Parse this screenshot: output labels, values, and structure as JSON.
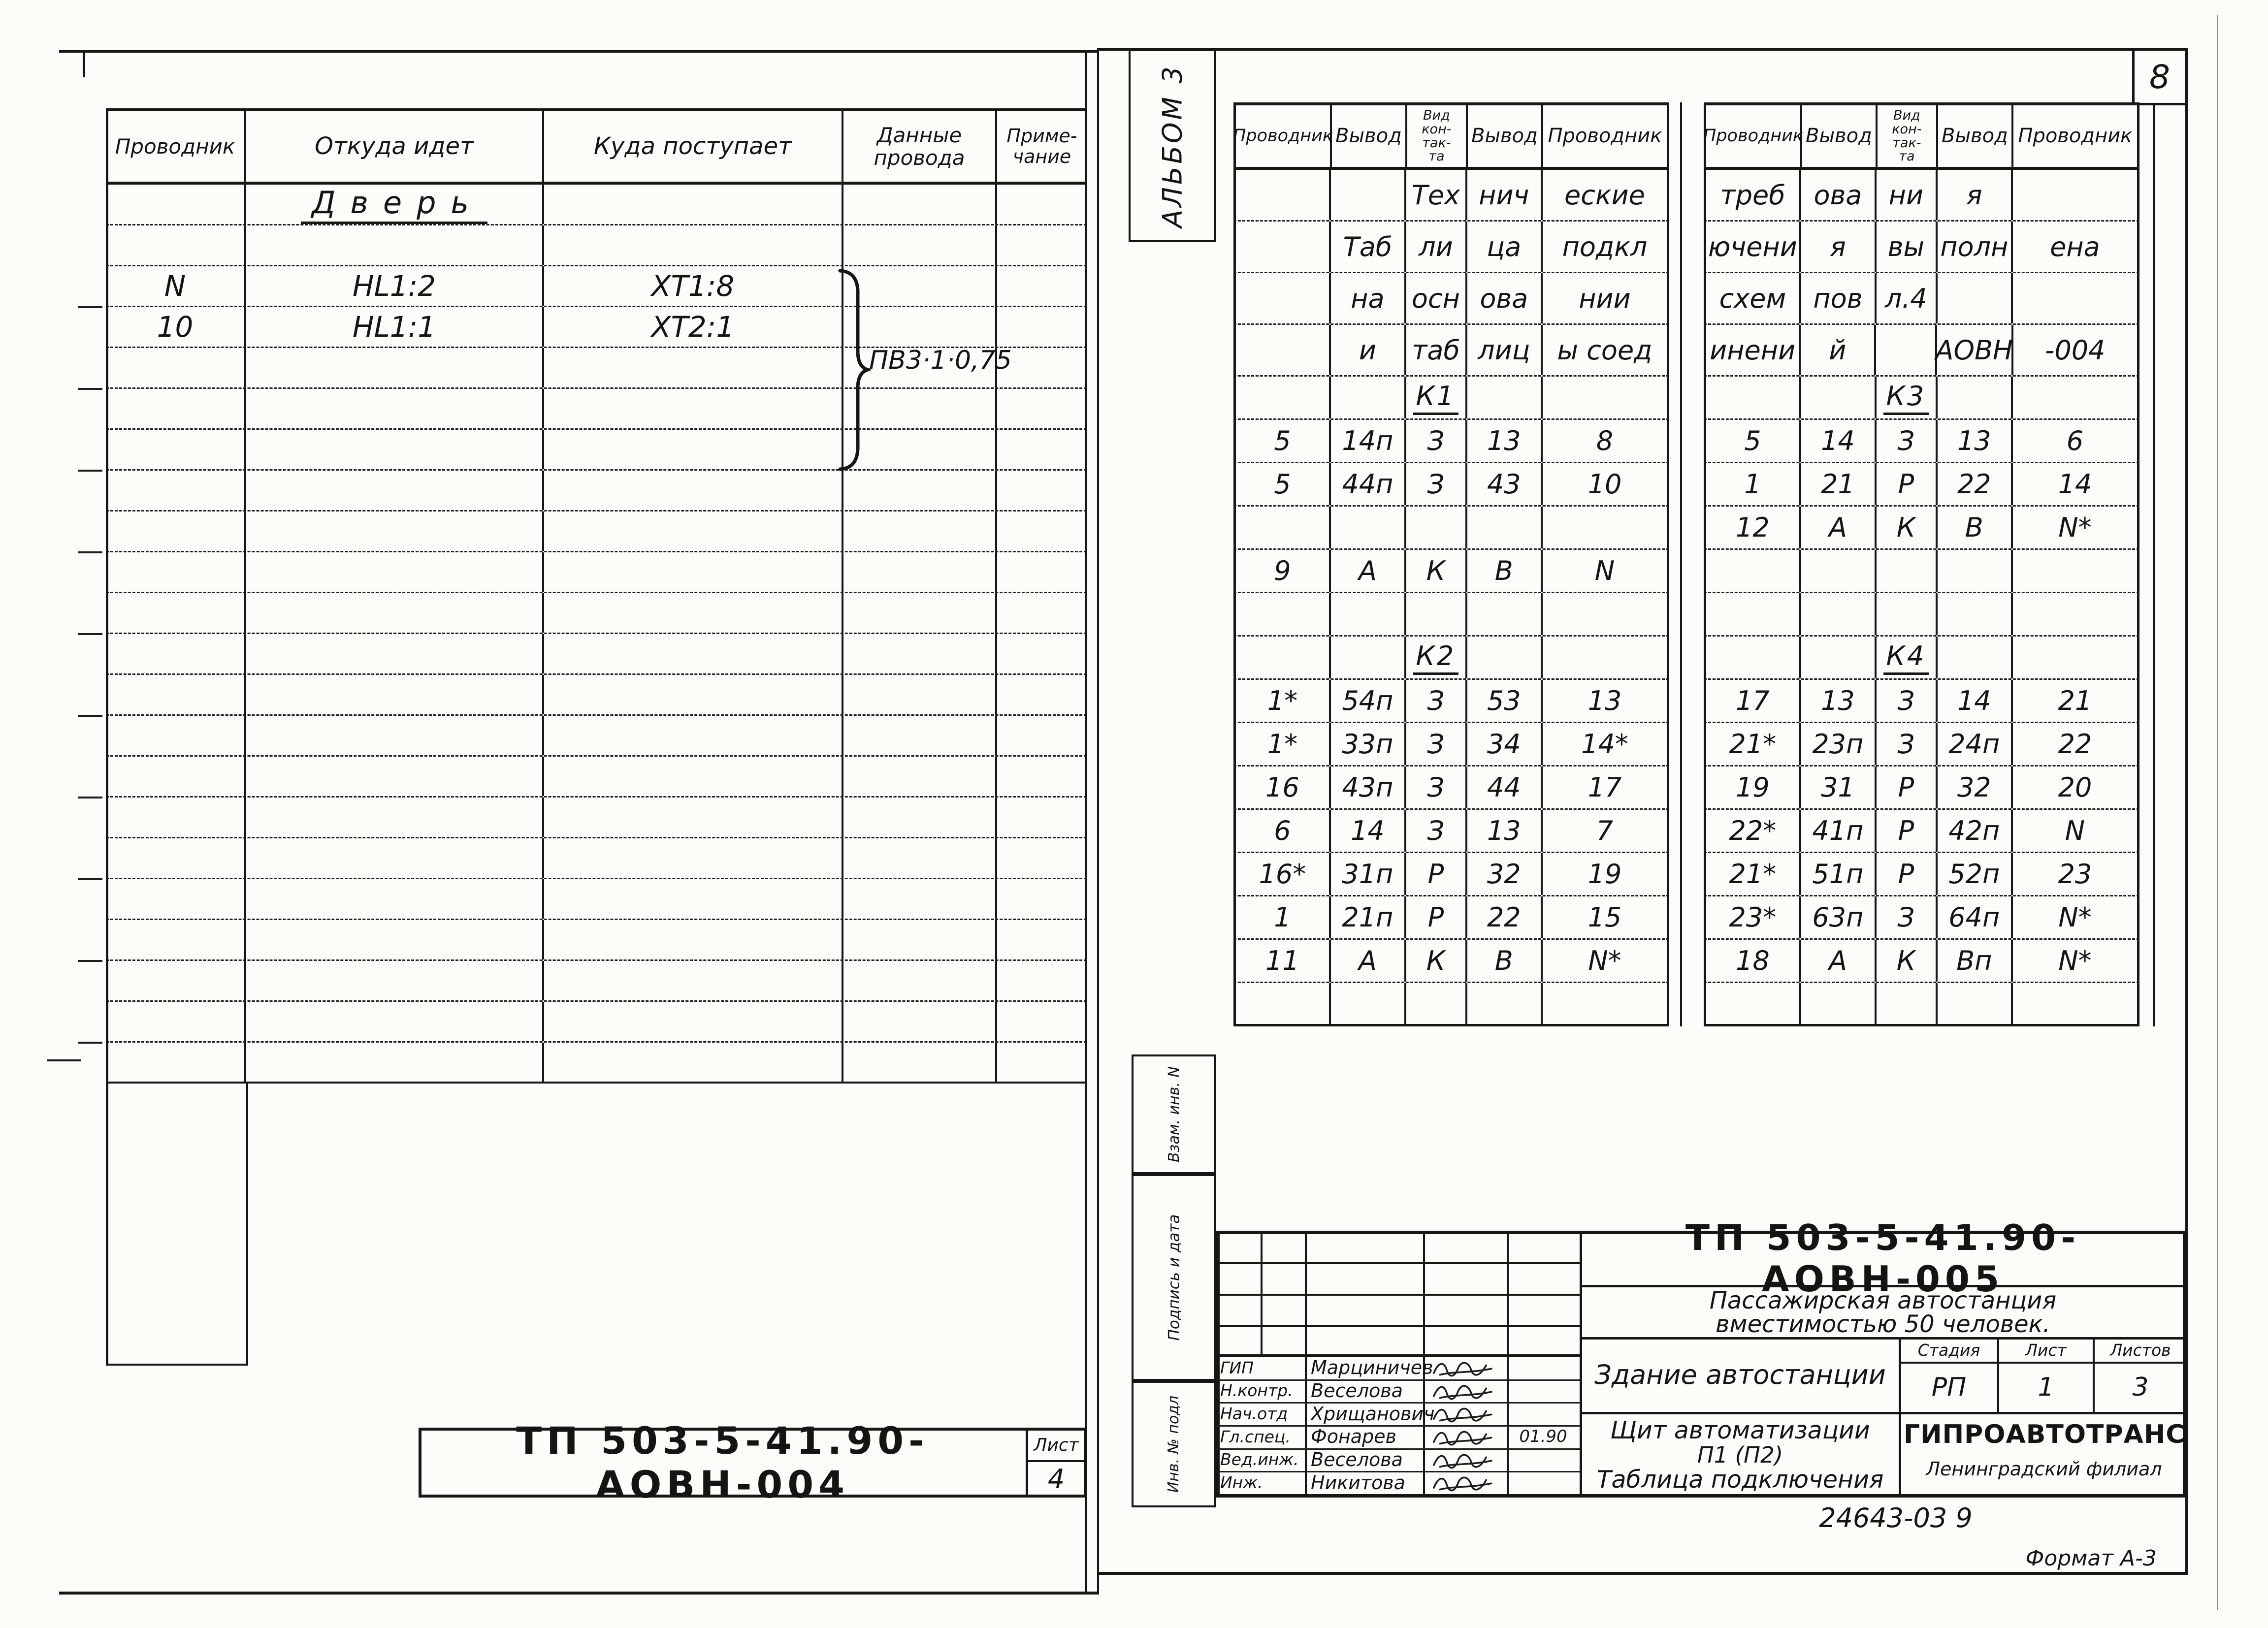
{
  "sheet": {
    "page_number": "8",
    "album_label": "АЛЬБОМ 3",
    "stamp_code": "24643-03  9",
    "format_label": "Формат А-3"
  },
  "margin": {
    "top_label": "Взам. инв. N",
    "middle_label": "Подпись и дата",
    "bottom_label": "Инв. № подл"
  },
  "left_page": {
    "table": {
      "headers": [
        "Проводник",
        "Откуда  идет",
        "Куда  поступает",
        "Данные\nпровода",
        "Приме-\nчание"
      ],
      "rows": [
        {
          "section": "Дверь"
        },
        [
          "",
          "",
          "",
          "",
          ""
        ],
        [
          "N",
          "HL1:2",
          "XT1:8",
          "",
          ""
        ],
        [
          "10",
          "HL1:1",
          "XT2:1",
          "",
          ""
        ],
        [
          "",
          "",
          "",
          "",
          ""
        ],
        [
          "",
          "",
          "",
          "",
          ""
        ],
        [
          "",
          "",
          "",
          "",
          ""
        ],
        [
          "",
          "",
          "",
          "",
          ""
        ],
        [
          "",
          "",
          "",
          "",
          ""
        ],
        [
          "",
          "",
          "",
          "",
          ""
        ],
        [
          "",
          "",
          "",
          "",
          ""
        ],
        [
          "",
          "",
          "",
          "",
          ""
        ],
        [
          "",
          "",
          "",
          "",
          ""
        ],
        [
          "",
          "",
          "",
          "",
          ""
        ],
        [
          "",
          "",
          "",
          "",
          ""
        ],
        [
          "",
          "",
          "",
          "",
          ""
        ],
        [
          "",
          "",
          "",
          "",
          ""
        ],
        [
          "",
          "",
          "",
          "",
          ""
        ],
        [
          "",
          "",
          "",
          "",
          ""
        ],
        [
          "",
          "",
          "",
          "",
          ""
        ],
        [
          "",
          "",
          "",
          "",
          ""
        ],
        [
          "",
          "",
          "",
          "",
          ""
        ]
      ],
      "wire_label": "ПВ3·1·0,75"
    },
    "title_block": {
      "doc_number": "ТП 503-5-41.90-АОВН-004",
      "sheet_label": "Лист",
      "sheet_number": "4"
    }
  },
  "right_page": {
    "table_headers": [
      "Проводник",
      "Вывод",
      "Вид\nкон-\nтак-\nта",
      "Вывод",
      "Проводник"
    ],
    "table_a": {
      "rows": [
        [
          "",
          "",
          "Тех",
          "нич",
          "еские"
        ],
        [
          "",
          "Таб",
          "ли",
          "ца",
          "подкл"
        ],
        [
          "",
          "на",
          "осн",
          "ова",
          "нии"
        ],
        [
          "",
          "и",
          "таб",
          "лиц",
          "ы соед"
        ],
        {
          "section": "К1"
        },
        [
          "5",
          "14п",
          "З",
          "13",
          "8"
        ],
        [
          "5",
          "44п",
          "З",
          "43",
          "10"
        ],
        [
          "",
          "",
          "",
          "",
          ""
        ],
        [
          "9",
          "А",
          "К",
          "В",
          "N"
        ],
        [
          "",
          "",
          "",
          "",
          ""
        ],
        {
          "section": "К2"
        },
        [
          "1*",
          "54п",
          "З",
          "53",
          "13"
        ],
        [
          "1*",
          "33п",
          "З",
          "34",
          "14*"
        ],
        [
          "16",
          "43п",
          "З",
          "44",
          "17"
        ],
        [
          "6",
          "14",
          "З",
          "13",
          "7"
        ],
        [
          "16*",
          "31п",
          "Р",
          "32",
          "19"
        ],
        [
          "1",
          "21п",
          "Р",
          "22",
          "15"
        ],
        [
          "11",
          "А",
          "К",
          "В",
          "N*"
        ],
        [
          "",
          "",
          "",
          "",
          ""
        ]
      ]
    },
    "table_b": {
      "rows": [
        [
          "треб",
          "ова",
          "ни",
          "я",
          ""
        ],
        [
          "ючени",
          "я",
          "вы",
          "полн",
          "ена"
        ],
        [
          "схем",
          "пов",
          "л.4",
          "",
          ""
        ],
        [
          "инени",
          "й",
          "",
          "АОВН",
          "-004"
        ],
        {
          "section": "К3"
        },
        [
          "5",
          "14",
          "З",
          "13",
          "6"
        ],
        [
          "1",
          "21",
          "Р",
          "22",
          "14"
        ],
        [
          "12",
          "А",
          "К",
          "В",
          "N*"
        ],
        [
          "",
          "",
          "",
          "",
          ""
        ],
        [
          "",
          "",
          "",
          "",
          ""
        ],
        {
          "section": "К4"
        },
        [
          "17",
          "13",
          "З",
          "14",
          "21"
        ],
        [
          "21*",
          "23п",
          "З",
          "24п",
          "22"
        ],
        [
          "19",
          "31",
          "Р",
          "32",
          "20"
        ],
        [
          "22*",
          "41п",
          "Р",
          "42п",
          "N"
        ],
        [
          "21*",
          "51п",
          "Р",
          "52п",
          "23"
        ],
        [
          "23*",
          "63п",
          "З",
          "64п",
          "N*"
        ],
        [
          "18",
          "А",
          "К",
          "Вп",
          "N*"
        ],
        [
          "",
          "",
          "",
          "",
          ""
        ]
      ]
    },
    "title_block": {
      "doc_number": "ТП 503-5-41.90-АОВН-005",
      "project_line1": "Пассажирская  автостанция",
      "project_line2": "вместимостью  50 человек.",
      "object_name": "Здание автостанции",
      "stage_label": "Стадия",
      "sheet_label": "Лист",
      "sheets_label": "Листов",
      "stage": "РП",
      "sheet": "1",
      "sheets": "3",
      "content_line1": "Щит автоматизации",
      "content_line2": "П1 (П2)",
      "content_line3": "Таблица подключения",
      "organization": "ГИПРОАВТОТРАНС",
      "branch": "Ленинградский филиал",
      "date": "01.90",
      "signatures": [
        {
          "role": "ГИП",
          "name": "Марциничев",
          "date": ""
        },
        {
          "role": "Н.контр.",
          "name": "Веселова",
          "date": ""
        },
        {
          "role": "Нач.отд",
          "name": "Хрищанович",
          "date": ""
        },
        {
          "role": "Гл.спец.",
          "name": "Фонарев",
          "date": "01.90"
        },
        {
          "role": "Вед.инж.",
          "name": "Веселова",
          "date": ""
        },
        {
          "role": "Инж.",
          "name": "Никитова",
          "date": ""
        }
      ]
    }
  }
}
